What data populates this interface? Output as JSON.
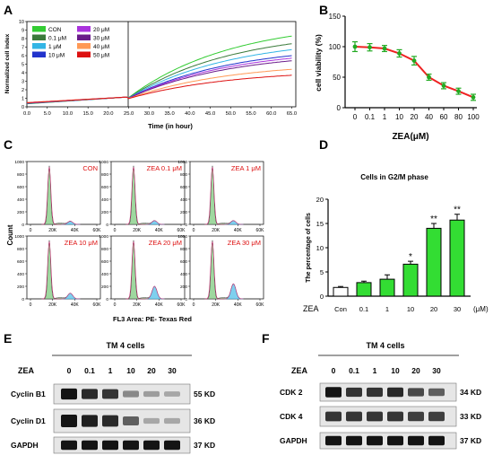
{
  "panels": {
    "A": {
      "letter": "A",
      "chart_data": {
        "type": "line",
        "xlabel": "Time (in hour)",
        "ylabel": "Normalized cell index",
        "xlim": [
          0,
          66
        ],
        "ylim": [
          0,
          10
        ],
        "x_ticks": [
          "0.0",
          "5.0",
          "10.0",
          "15.0",
          "20.0",
          "25.0",
          "30.0",
          "35.0",
          "40.0",
          "45.0",
          "50.0",
          "55.0",
          "60.0",
          "65.0"
        ],
        "y_ticks": [
          "0",
          "1",
          "2",
          "3",
          "4",
          "5",
          "6",
          "7",
          "8",
          "9",
          "10"
        ],
        "legend_placement": "top-left",
        "series": [
          {
            "name": "CON",
            "color": "#33cc33",
            "end": 8.3
          },
          {
            "name": "0.1 μM",
            "color": "#3a7a3a",
            "end": 7.4
          },
          {
            "name": "1 μM",
            "color": "#33b5e5",
            "end": 6.7
          },
          {
            "name": "10 μM",
            "color": "#2233cc",
            "end": 6.0
          },
          {
            "name": "20 μM",
            "color": "#aa33dd",
            "end": 5.7
          },
          {
            "name": "30 μM",
            "color": "#6a1b8a",
            "end": 5.4
          },
          {
            "name": "40 μM",
            "color": "#ff9955",
            "end": 4.4
          },
          {
            "name": "50 μM",
            "color": "#dd1111",
            "end": 3.7
          }
        ]
      }
    },
    "B": {
      "letter": "B",
      "chart_data": {
        "type": "line",
        "xlabel": "ZEA(μM)",
        "ylabel": "cell viability (%)",
        "categories": [
          "0",
          "0.1",
          "1",
          "10",
          "20",
          "40",
          "60",
          "80",
          "100"
        ],
        "values": [
          100,
          99,
          97,
          89,
          77,
          50,
          36,
          27,
          17
        ],
        "errors": [
          8,
          6,
          5,
          6,
          7,
          5,
          5,
          5,
          5
        ],
        "ylim": [
          0,
          150
        ],
        "y_ticks": [
          "0",
          "50",
          "100",
          "150"
        ],
        "line_color": "#ee2222",
        "marker_color": "#22aa22"
      }
    },
    "C": {
      "letter": "C",
      "ylabel": "Count",
      "xlabel": "FL3 Area: PE- Texas Red",
      "y_ticks": [
        "0",
        "200",
        "400",
        "600",
        "800",
        "1000"
      ],
      "x_ticks": [
        "0",
        "20K",
        "40K",
        "60K"
      ],
      "histograms": [
        {
          "label": "CON",
          "g2m": 0.05
        },
        {
          "label": "ZEA 0.1 μM",
          "g2m": 0.06
        },
        {
          "label": "ZEA 1 μM",
          "g2m": 0.06
        },
        {
          "label": "ZEA 10 μM",
          "g2m": 0.09
        },
        {
          "label": "ZEA 20 μM",
          "g2m": 0.2
        },
        {
          "label": "ZEA 30 μM",
          "g2m": 0.24
        }
      ]
    },
    "D": {
      "letter": "D",
      "chart_data": {
        "type": "bar",
        "title": "Cells in G2/M phase",
        "ylabel": "The percentage of cells",
        "row_label": "ZEA",
        "unit_label": "(μM)",
        "categories": [
          "Con",
          "0.1",
          "1",
          "10",
          "20",
          "30"
        ],
        "values": [
          1.8,
          2.8,
          3.5,
          6.6,
          14.0,
          15.7
        ],
        "errors": [
          0.2,
          0.3,
          0.9,
          0.6,
          1.0,
          1.2
        ],
        "annotations": [
          "",
          "",
          "",
          "*",
          "**",
          "**"
        ],
        "ylim": [
          0,
          20
        ],
        "y_ticks": [
          "0",
          "5",
          "10",
          "15",
          "20"
        ],
        "colors": [
          "#ffffff",
          "#33dd33"
        ]
      }
    },
    "E": {
      "letter": "E",
      "cell_line": "TM 4 cells",
      "treatment_label": "ZEA",
      "doses": [
        "0",
        "0.1",
        "1",
        "10",
        "20",
        "30"
      ],
      "rows": [
        {
          "name": "Cyclin B1",
          "size": "55 KD",
          "levels": [
            1.0,
            0.9,
            0.85,
            0.45,
            0.35,
            0.3
          ]
        },
        {
          "name": "Cyclin D1",
          "size": "36 KD",
          "levels": [
            1.0,
            0.95,
            0.9,
            0.65,
            0.3,
            0.3
          ]
        },
        {
          "name": "GAPDH",
          "size": "37 KD",
          "levels": [
            1.0,
            1.0,
            1.0,
            1.0,
            1.0,
            1.0
          ]
        }
      ]
    },
    "F": {
      "letter": "F",
      "cell_line": "TM 4 cells",
      "treatment_label": "ZEA",
      "doses": [
        "0",
        "0.1",
        "1",
        "10",
        "20",
        "30"
      ],
      "rows": [
        {
          "name": "CDK 2",
          "size": "34 KD",
          "levels": [
            1.0,
            0.85,
            0.85,
            0.9,
            0.75,
            0.65
          ]
        },
        {
          "name": "CDK 4",
          "size": "33 KD",
          "levels": [
            0.85,
            0.85,
            0.85,
            0.85,
            0.8,
            0.8
          ]
        },
        {
          "name": "GAPDH",
          "size": "37 KD",
          "levels": [
            1.0,
            1.0,
            1.0,
            1.0,
            1.0,
            1.0
          ]
        }
      ]
    }
  }
}
